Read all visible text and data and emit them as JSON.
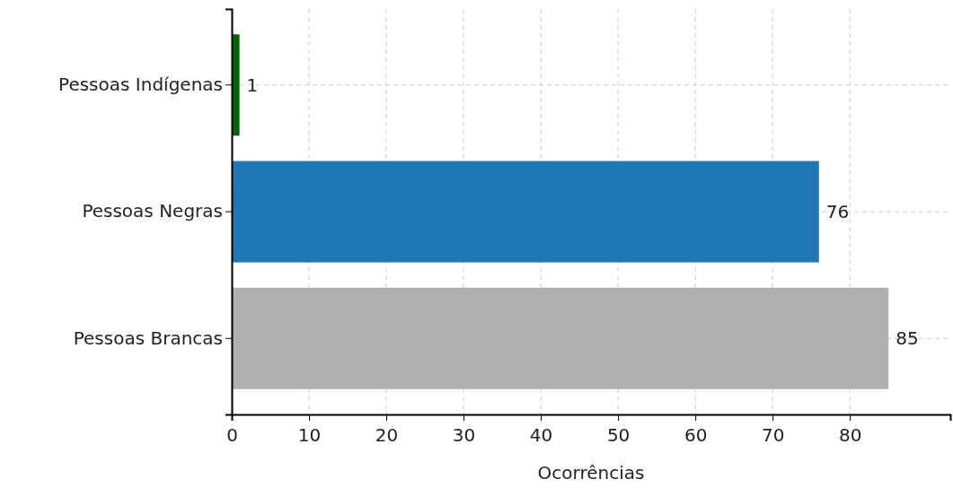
{
  "chart_data": {
    "type": "bar",
    "orientation": "horizontal",
    "categories": [
      "Pessoas Indígenas",
      "Pessoas Negras",
      "Pessoas Brancas"
    ],
    "values": [
      1,
      76,
      85
    ],
    "colors": [
      "#006400",
      "#1f77b4",
      "#b0b0b0"
    ],
    "xlim": [
      0,
      93
    ],
    "xticks": [
      0,
      10,
      20,
      30,
      40,
      50,
      60,
      70,
      80
    ],
    "xlabel": "Ocorrências",
    "grid": true,
    "data_labels": true
  }
}
